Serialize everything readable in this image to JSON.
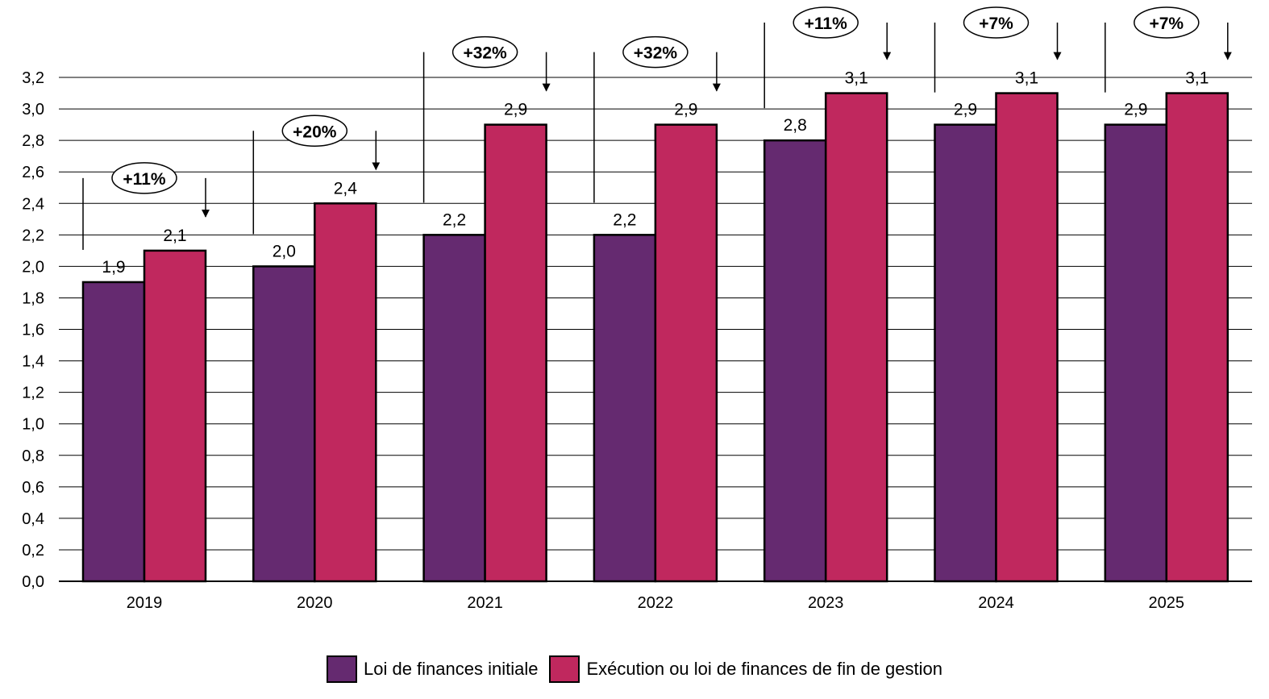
{
  "chart_data": {
    "type": "bar",
    "categories": [
      "2019",
      "2020",
      "2021",
      "2022",
      "2023",
      "2024",
      "2025"
    ],
    "series": [
      {
        "name": "Loi de finances initiale",
        "color": "#652A70",
        "values": [
          1.9,
          2.0,
          2.2,
          2.2,
          2.8,
          2.9,
          2.9
        ],
        "labels": [
          "1,9",
          "2,0",
          "2,2",
          "2,2",
          "2,8",
          "2,9",
          "2,9"
        ]
      },
      {
        "name": "Exécution ou loi de finances de fin de gestion",
        "color": "#C0285E",
        "values": [
          2.1,
          2.4,
          2.9,
          2.9,
          3.1,
          3.1,
          3.1
        ],
        "labels": [
          "2,1",
          "2,4",
          "2,9",
          "2,9",
          "3,1",
          "3,1",
          "3,1"
        ]
      }
    ],
    "growth_annotations": [
      "+11%",
      "+20%",
      "+32%",
      "+32%",
      "+11%",
      "+7%",
      "+7%"
    ],
    "yticks": [
      "0,0",
      "0,2",
      "0,4",
      "0,6",
      "0,8",
      "1,0",
      "1,2",
      "1,4",
      "1,6",
      "1,8",
      "2,0",
      "2,2",
      "2,4",
      "2,6",
      "2,8",
      "3,0",
      "3,2"
    ],
    "ylim": [
      0,
      3.2
    ],
    "grid": true,
    "legend_position": "bottom",
    "title": "",
    "xlabel": "",
    "ylabel": ""
  }
}
